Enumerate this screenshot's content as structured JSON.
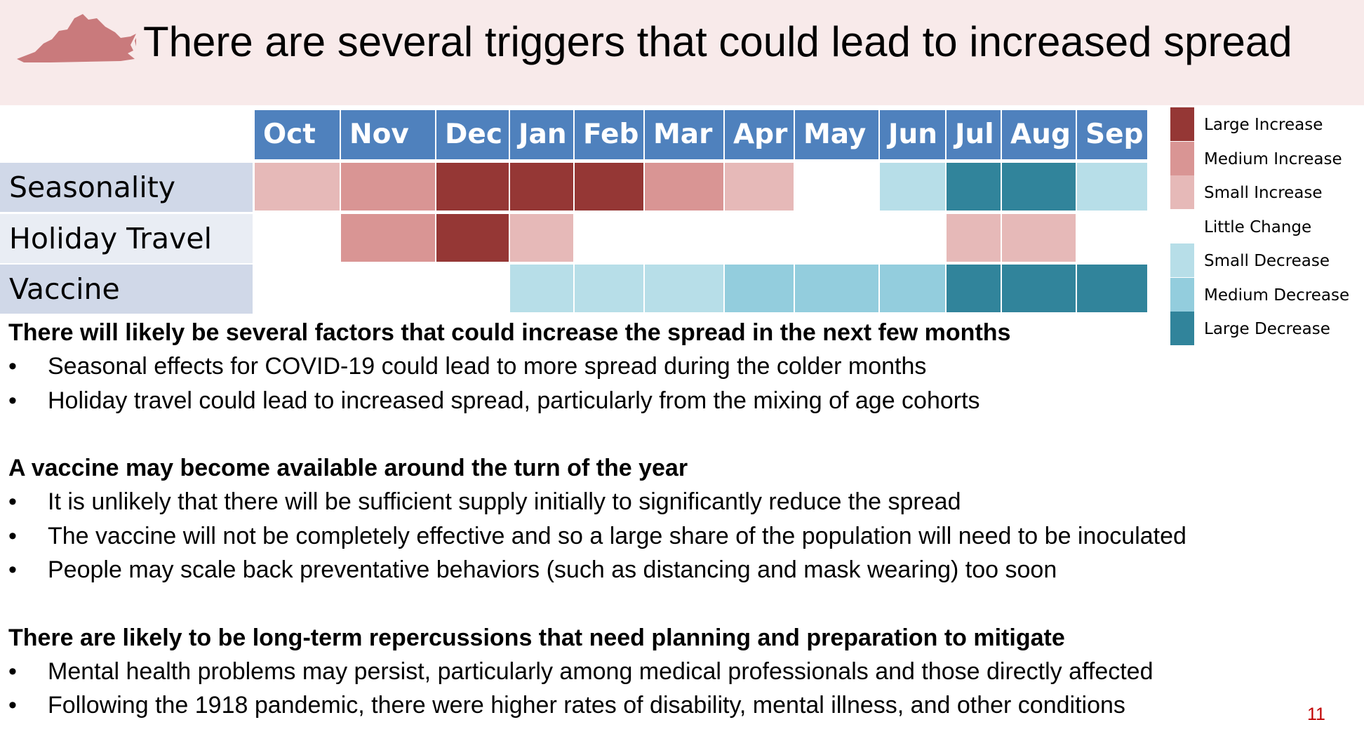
{
  "header": {
    "title": "There are several triggers that could lead to increased spread"
  },
  "table": {
    "months": [
      "Oct",
      "Nov",
      "Dec",
      "Jan",
      "Feb",
      "Mar",
      "Apr",
      "May",
      "Jun",
      "Jul",
      "Aug",
      "Sep"
    ],
    "rows": [
      {
        "label": "Seasonality",
        "effects": [
          "small-increase",
          "medium-increase",
          "large-increase",
          "large-increase",
          "large-increase",
          "medium-increase",
          "small-increase",
          "little-change",
          "small-decrease",
          "large-decrease",
          "large-decrease",
          "small-decrease"
        ]
      },
      {
        "label": "Holiday Travel",
        "effects": [
          "little-change",
          "medium-increase",
          "large-increase",
          "small-increase",
          "little-change",
          "little-change",
          "little-change",
          "little-change",
          "little-change",
          "small-increase",
          "small-increase",
          "little-change"
        ]
      },
      {
        "label": "Vaccine",
        "effects": [
          "little-change",
          "little-change",
          "little-change",
          "small-decrease",
          "small-decrease",
          "small-decrease",
          "medium-decrease",
          "medium-decrease",
          "medium-decrease",
          "large-decrease",
          "large-decrease",
          "large-decrease"
        ]
      }
    ]
  },
  "legend": [
    {
      "key": "large-increase",
      "label": "Large Increase",
      "color": "#953735"
    },
    {
      "key": "medium-increase",
      "label": "Medium Increase",
      "color": "#d99594"
    },
    {
      "key": "small-increase",
      "label": "Small Increase",
      "color": "#e6b9b8"
    },
    {
      "key": "little-change",
      "label": "Little Change",
      "color": "#ffffff"
    },
    {
      "key": "small-decrease",
      "label": "Small Decrease",
      "color": "#b7dee8"
    },
    {
      "key": "medium-decrease",
      "label": "Medium Decrease",
      "color": "#93cddd"
    },
    {
      "key": "large-decrease",
      "label": "Large Decrease",
      "color": "#31849b"
    }
  ],
  "sections": [
    {
      "heading": "There will likely be several factors that could increase the spread in the next few months",
      "bullets": [
        "Seasonal effects for COVID-19 could lead to more spread during the colder months",
        "Holiday travel could lead to increased spread, particularly from the mixing of age cohorts"
      ]
    },
    {
      "heading": "A vaccine may become available around the turn of the year",
      "bullets": [
        "It is unlikely that there will be sufficient supply initially to significantly reduce the spread",
        "The vaccine will not be completely effective and so a large share of the population will need to be inoculated",
        "People may scale back preventative behaviors (such as distancing and mask wearing) too soon"
      ]
    },
    {
      "heading": "There are likely to be long-term repercussions that need planning and preparation to mitigate",
      "bullets": [
        "Mental health problems may persist, particularly among medical professionals and those directly affected",
        "Following the 1918 pandemic, there were higher rates of disability, mental illness, and other conditions"
      ]
    }
  ],
  "page_number": "11",
  "colors": {
    "header_bg": "#f8eaea",
    "month_header_bg": "#4f81bd",
    "row_label_dark": "#d0d8e8",
    "row_label_light": "#e9edf4",
    "page_number": "#c00000"
  }
}
